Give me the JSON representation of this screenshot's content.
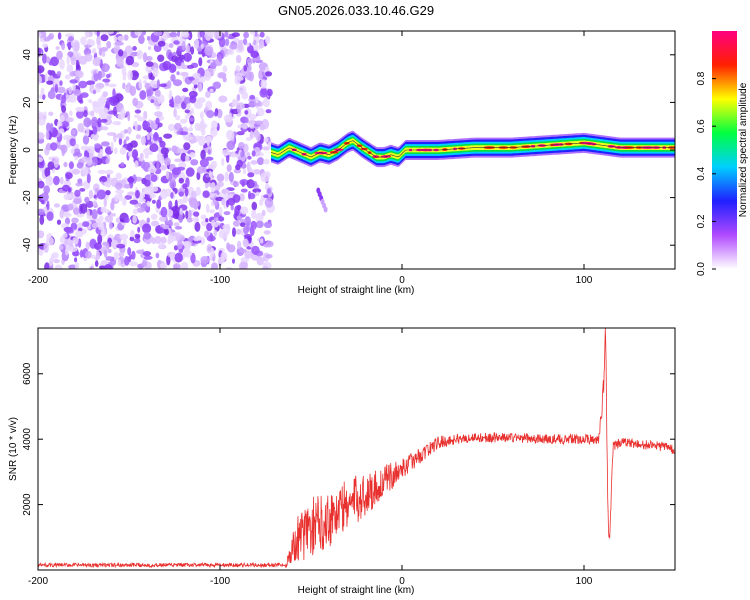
{
  "title": "GN05.2026.033.10.46.G29",
  "chart_data": [
    {
      "type": "heatmap",
      "title": "GN05.2026.033.10.46.G29",
      "xlabel": "Height of straight line (km)",
      "ylabel": "Frequency (Hz)",
      "xlim": [
        -200,
        150
      ],
      "ylim": [
        -50,
        50
      ],
      "xticks": [
        -200,
        -100,
        0,
        100
      ],
      "yticks": [
        -40,
        -20,
        0,
        20,
        40
      ],
      "colorbar": {
        "label": "Normalized spectral amplitude",
        "range": [
          0.0,
          1.0
        ],
        "ticks": [
          "0.0",
          "0.2",
          "0.4",
          "0.6",
          "0.8"
        ],
        "colors": [
          "#ffffff",
          "#b04aff",
          "#2020ff",
          "#00d0ff",
          "#00ff40",
          "#ffff00",
          "#ff2000",
          "#ff0080"
        ]
      },
      "noise_region_km": [
        -200,
        -72
      ],
      "signal_track": {
        "x": [
          -72,
          -68,
          -62,
          -56,
          -50,
          -45,
          -40,
          -35,
          -30,
          -27,
          -22,
          -18,
          -14,
          -10,
          -6,
          -2,
          2,
          8,
          20,
          40,
          60,
          80,
          100,
          110,
          120,
          150
        ],
        "y": [
          -1,
          -2,
          1,
          -1,
          -3,
          -1,
          -2,
          0,
          3,
          4,
          1,
          -1,
          -3,
          -3,
          -2,
          -3,
          0,
          0,
          0,
          1,
          1,
          2,
          3,
          2,
          1,
          1
        ]
      },
      "tail_fragment": {
        "x": [
          -46,
          -42
        ],
        "y": [
          -17,
          -25
        ]
      }
    },
    {
      "type": "line",
      "title": "",
      "xlabel": "Height of straight line (km)",
      "ylabel": "SNR (10 * v/v)",
      "xlim": [
        -200,
        150
      ],
      "ylim": [
        0,
        7400
      ],
      "xticks": [
        -200,
        -100,
        0,
        100
      ],
      "yticks": [
        2000,
        4000,
        6000
      ],
      "series": [
        {
          "name": "SNR",
          "color": "#e8302e",
          "envelope_x": [
            -200,
            -150,
            -100,
            -64,
            -62,
            -58,
            -50,
            -40,
            -30,
            -20,
            -10,
            0,
            10,
            20,
            30,
            40,
            50,
            60,
            80,
            100,
            108,
            110,
            111,
            112,
            113,
            114,
            116,
            120,
            130,
            140,
            150
          ],
          "envelope_y": [
            150,
            150,
            150,
            150,
            400,
            900,
            1300,
            1600,
            2000,
            2300,
            2700,
            3100,
            3500,
            3900,
            4000,
            4050,
            4050,
            4050,
            4000,
            4000,
            4000,
            5000,
            6000,
            7300,
            2000,
            800,
            3800,
            3900,
            3850,
            3800,
            3700
          ],
          "noise_amplitude": [
            60,
            60,
            60,
            60,
            300,
            700,
            900,
            900,
            800,
            700,
            500,
            300,
            250,
            200,
            150,
            150,
            150,
            150,
            150,
            150,
            150,
            400,
            600,
            500,
            300,
            200,
            150,
            150,
            150,
            150,
            150
          ]
        }
      ]
    }
  ]
}
